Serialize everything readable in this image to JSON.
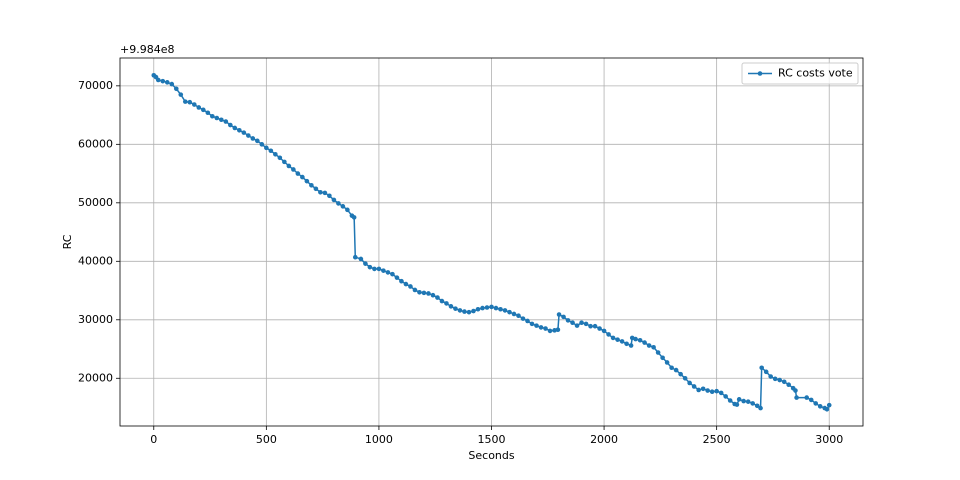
{
  "chart_data": {
    "type": "line",
    "x_label": "Seconds",
    "y_label": "RC",
    "y_offset_label": "+9.984e8",
    "x": [
      0,
      10,
      20,
      40,
      60,
      80,
      100,
      120,
      140,
      160,
      180,
      200,
      220,
      240,
      260,
      280,
      300,
      320,
      340,
      360,
      380,
      400,
      420,
      440,
      460,
      480,
      500,
      520,
      540,
      560,
      580,
      600,
      620,
      640,
      660,
      680,
      700,
      720,
      740,
      760,
      780,
      800,
      820,
      840,
      860,
      880,
      890,
      895,
      920,
      940,
      960,
      980,
      1000,
      1020,
      1040,
      1060,
      1080,
      1100,
      1120,
      1140,
      1160,
      1180,
      1200,
      1220,
      1240,
      1260,
      1280,
      1300,
      1320,
      1340,
      1360,
      1380,
      1400,
      1420,
      1440,
      1460,
      1480,
      1500,
      1520,
      1540,
      1560,
      1580,
      1600,
      1620,
      1640,
      1660,
      1680,
      1700,
      1720,
      1740,
      1760,
      1780,
      1795,
      1800,
      1820,
      1840,
      1860,
      1880,
      1900,
      1920,
      1940,
      1960,
      1980,
      2000,
      2020,
      2040,
      2060,
      2080,
      2100,
      2120,
      2125,
      2140,
      2160,
      2180,
      2200,
      2220,
      2240,
      2260,
      2280,
      2300,
      2320,
      2340,
      2360,
      2380,
      2400,
      2420,
      2440,
      2460,
      2480,
      2500,
      2520,
      2540,
      2560,
      2580,
      2590,
      2600,
      2620,
      2640,
      2660,
      2680,
      2695,
      2700,
      2720,
      2740,
      2760,
      2780,
      2800,
      2820,
      2840,
      2850,
      2855,
      2900,
      2920,
      2940,
      2960,
      2980,
      2990,
      3000
    ],
    "series": [
      {
        "name": "RC costs vote",
        "color": "#1f77b4",
        "values": [
          71800,
          71500,
          71000,
          70800,
          70600,
          70300,
          69500,
          68500,
          67300,
          67200,
          66800,
          66300,
          65900,
          65400,
          64800,
          64500,
          64200,
          63900,
          63300,
          62800,
          62400,
          62000,
          61500,
          61000,
          60600,
          60000,
          59400,
          58900,
          58300,
          57700,
          57000,
          56300,
          55700,
          55000,
          54400,
          53700,
          53000,
          52400,
          51800,
          51700,
          51200,
          50500,
          49900,
          49400,
          48800,
          47800,
          47500,
          40700,
          40400,
          39600,
          39000,
          38700,
          38700,
          38400,
          38100,
          37800,
          37200,
          36600,
          36100,
          35700,
          35100,
          34700,
          34600,
          34500,
          34200,
          33800,
          33200,
          32800,
          32300,
          31900,
          31600,
          31400,
          31300,
          31500,
          31800,
          32000,
          32100,
          32200,
          32000,
          31800,
          31600,
          31300,
          31000,
          30700,
          30200,
          29800,
          29300,
          29000,
          28700,
          28500,
          28100,
          28200,
          28300,
          30900,
          30500,
          29900,
          29500,
          29000,
          29500,
          29300,
          28900,
          28900,
          28500,
          28100,
          27500,
          26900,
          26600,
          26300,
          25900,
          25600,
          26900,
          26700,
          26500,
          26100,
          25600,
          25300,
          24400,
          23500,
          22700,
          21800,
          21400,
          20700,
          20000,
          19200,
          18600,
          18000,
          18200,
          17900,
          17700,
          17800,
          17500,
          16900,
          16200,
          15600,
          15500,
          16400,
          16100,
          16000,
          15700,
          15300,
          14900,
          21800,
          21100,
          20300,
          19900,
          19700,
          19400,
          18900,
          18300,
          17900,
          16700,
          16700,
          16300,
          15700,
          15200,
          14900,
          14700,
          15400
        ]
      }
    ],
    "xlim": [
      -150,
      3150
    ],
    "ylim": [
      11840,
      74760
    ],
    "xticks": [
      0,
      500,
      1000,
      1500,
      2000,
      2500,
      3000
    ],
    "yticks": [
      20000,
      30000,
      40000,
      50000,
      60000,
      70000
    ],
    "grid": true,
    "legend": "upper right"
  }
}
